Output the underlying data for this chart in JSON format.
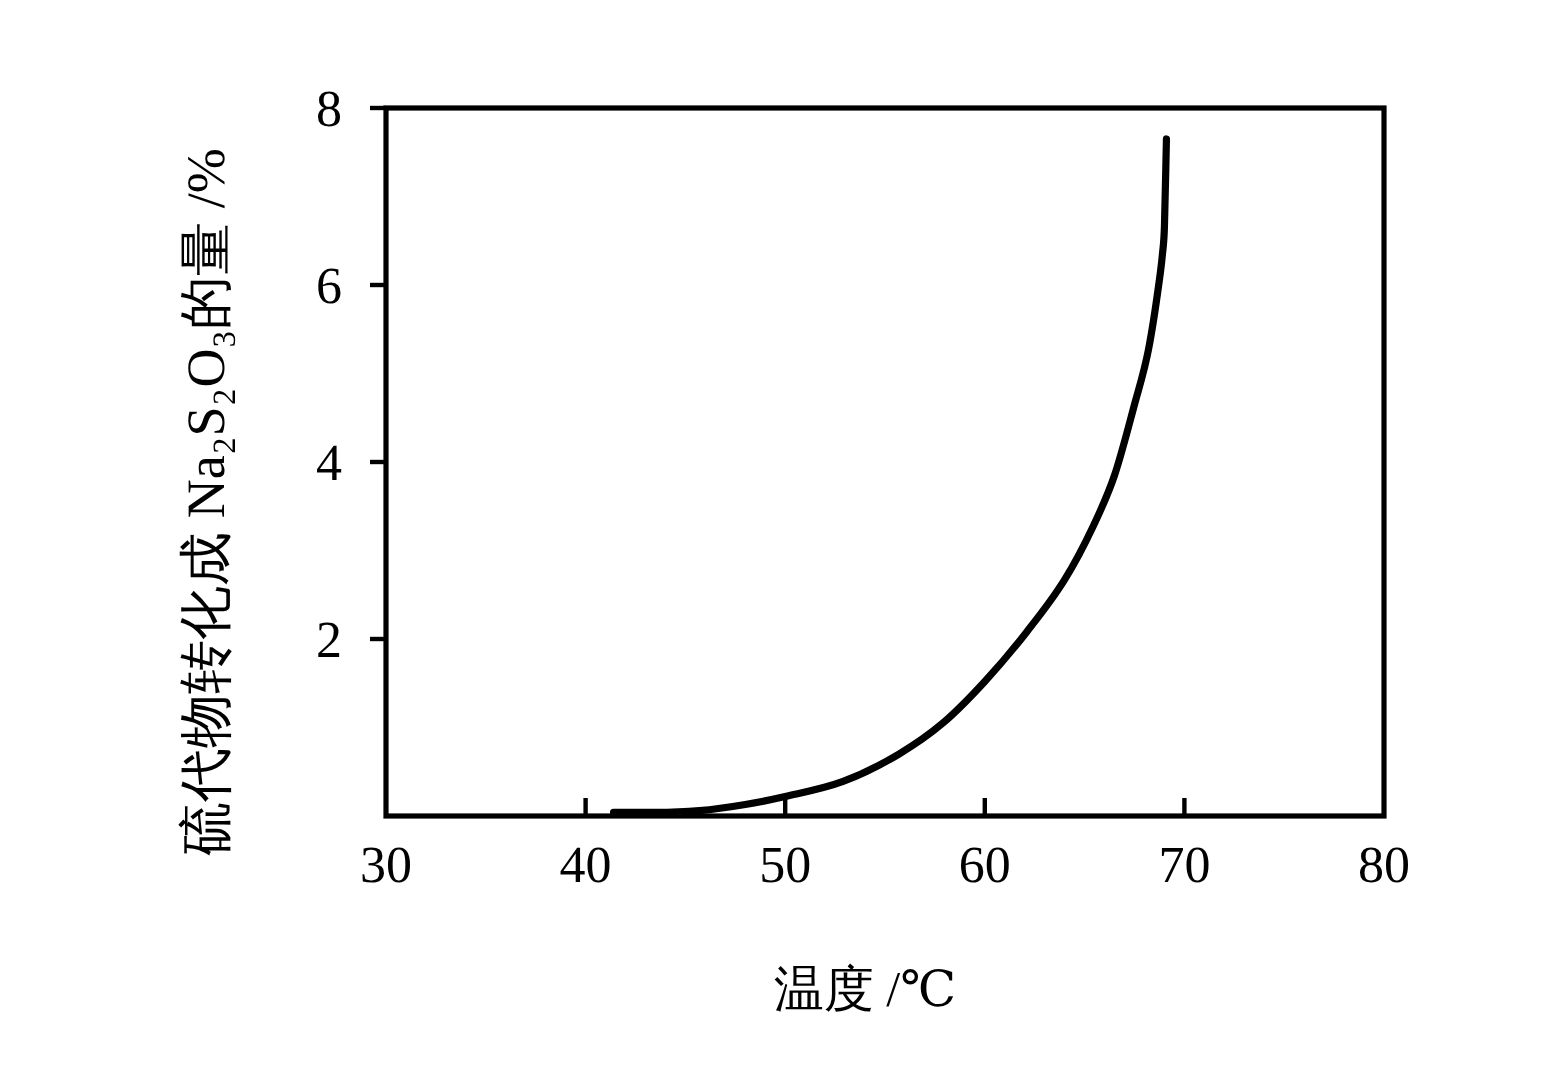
{
  "chart_data": {
    "type": "line",
    "xlabel": "温度 /℃",
    "ylabel": "硫代物转化成 Na₂S₂O₃的量 /%",
    "x": [
      41.4,
      43.5,
      45.7,
      48,
      50,
      52.9,
      55.7,
      57.9,
      60,
      62.1,
      64.0,
      65.4,
      66.5,
      67.5,
      68.2,
      68.7,
      68.9,
      69.0,
      69.1
    ],
    "series": [
      {
        "color": "#000000",
        "values": [
          0.04,
          0.04,
          0.06,
          0.13,
          0.22,
          0.39,
          0.7,
          1.05,
          1.52,
          2.08,
          2.67,
          3.26,
          3.85,
          4.65,
          5.27,
          5.98,
          6.35,
          6.66,
          7.65
        ]
      }
    ],
    "xlim": [
      30,
      80
    ],
    "xticks": [
      30,
      40,
      50,
      60,
      70,
      80
    ],
    "ylim": [
      0,
      8
    ],
    "yticks": [
      2,
      4,
      6,
      8
    ],
    "grid": false,
    "marker": "none",
    "line_style": "solid"
  }
}
